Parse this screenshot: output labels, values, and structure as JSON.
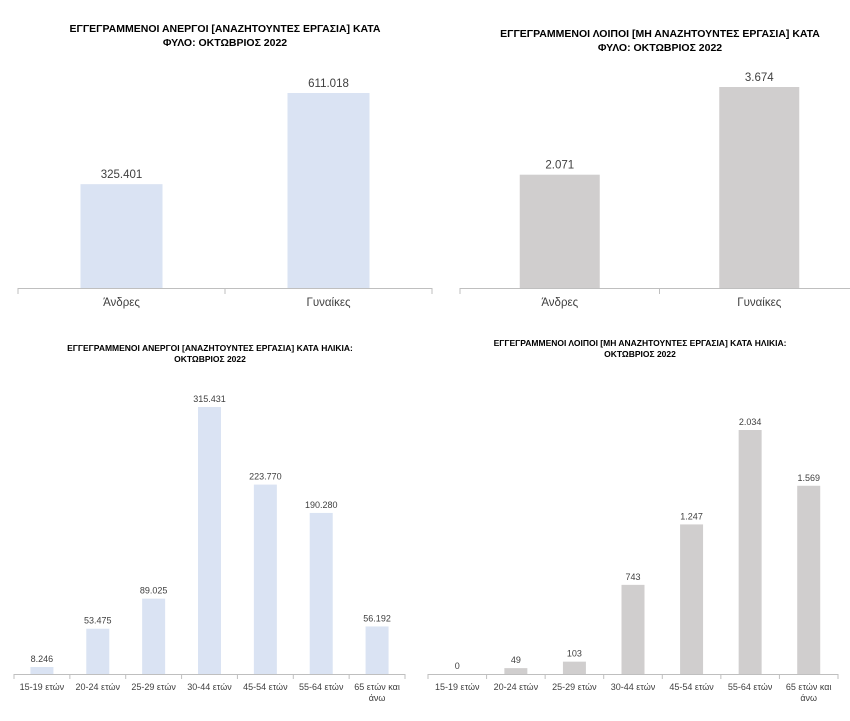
{
  "chart_data": [
    {
      "type": "bar",
      "title": "ΕΓΓΕΓΡΑΜΜΕΝΟΙ ΑΝΕΡΓΟΙ [ΑΝΑΖΗΤΟΥΝΤΕΣ ΕΡΓΑΣΙΑ]  ΚΑΤΑ ΦΥΛΟ: ΟΚΤΩΒΡΙΟΣ  2022",
      "categories": [
        "Άνδρες",
        "Γυναίκες"
      ],
      "values": [
        325401,
        611018
      ],
      "value_labels": [
        "325.401",
        "611.018"
      ],
      "ylim": [
        0,
        700000
      ],
      "color": "#dae3f3",
      "grid": false
    },
    {
      "type": "bar",
      "title": "ΕΓΓΕΓΡΑΜΜΕΝΟΙ ΛΟΙΠΟΙ [ΜΗ ΑΝΑΖΗΤΟΥΝΤΕΣ ΕΡΓΑΣΙΑ] ΚΑΤΑ ΦΥΛΟ: ΟΚΤΩΒΡΙΟΣ  2022",
      "categories": [
        "Άνδρες",
        "Γυναίκες"
      ],
      "values": [
        2071,
        3674
      ],
      "value_labels": [
        "2.071",
        "3.674"
      ],
      "ylim": [
        0,
        4000
      ],
      "color": "#d0cece",
      "grid": false
    },
    {
      "type": "bar",
      "title": "ΕΓΓΕΓΡΑΜΜΕΝΟΙ ΑΝΕΡΓΟΙ [ΑΝΑΖΗΤΟΥΝΤΕΣ ΕΡΓΑΣΙΑ] ΚΑΤΑ ΗΛΙΚΙΑ: ΟΚΤΩΒΡΙΟΣ 2022",
      "categories": [
        "15-19 ετών",
        "20-24 ετών",
        "25-29 ετών",
        "30-44 ετών",
        "45-54 ετών",
        "55-64 ετών",
        "65 ετών και άνω"
      ],
      "values": [
        8246,
        53475,
        89025,
        315431,
        223770,
        190280,
        56192
      ],
      "value_labels": [
        "8.246",
        "53.475",
        "89.025",
        "315.431",
        "223.770",
        "190.280",
        "56.192"
      ],
      "ylim": [
        0,
        350000
      ],
      "color": "#dae3f3",
      "grid": false
    },
    {
      "type": "bar",
      "title": "ΕΓΓΕΓΡΑΜΜΕΝΟΙ ΛΟΙΠΟΙ [ΜΗ ΑΝΑΖΗΤΟΥΝΤΕΣ ΕΡΓΑΣΙΑ] ΚΑΤΑ ΗΛΙΚΙΑ: ΟΚΤΩΒΡΙΟΣ  2022",
      "categories": [
        "15-19 ετών",
        "20-24 ετών",
        "25-29 ετών",
        "30-44 ετών",
        "45-54 ετών",
        "55-64 ετών",
        "65 ετών και άνω"
      ],
      "values": [
        0,
        49,
        103,
        743,
        1247,
        2034,
        1569
      ],
      "value_labels": [
        "0",
        "49",
        "103",
        "743",
        "1.247",
        "2.034",
        "1.569"
      ],
      "ylim": [
        0,
        2300
      ],
      "color": "#d0cece",
      "grid": false
    }
  ]
}
